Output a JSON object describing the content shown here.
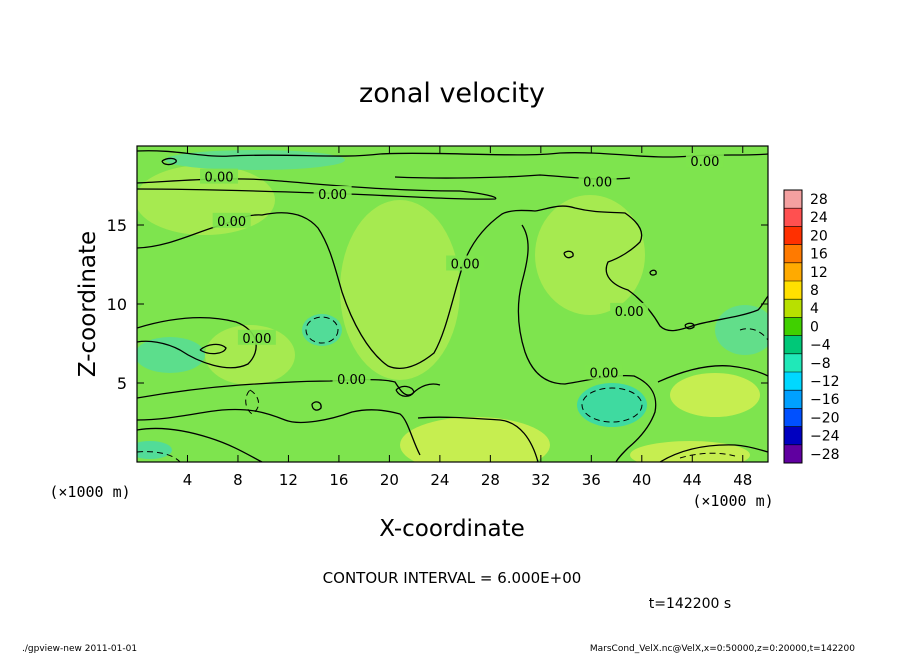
{
  "chart_data": {
    "type": "heatmap",
    "title": "zonal velocity",
    "xlabel": "X-coordinate",
    "ylabel": "Z-coordinate",
    "x_unit": "(×1000 m)",
    "z_unit": "(×1000 m)",
    "x_ticks": [
      "4",
      "8",
      "12",
      "16",
      "20",
      "24",
      "28",
      "32",
      "36",
      "40",
      "44",
      "48"
    ],
    "x_tick_values": [
      4,
      8,
      12,
      16,
      20,
      24,
      28,
      32,
      36,
      40,
      44,
      48
    ],
    "y_ticks": [
      "5",
      "10",
      "15"
    ],
    "y_tick_values": [
      5,
      10,
      15
    ],
    "xlim": [
      0,
      50
    ],
    "ylim": [
      0,
      20
    ],
    "contour_labels": [
      {
        "text": "0.00",
        "x": 6.5,
        "z": 18.0
      },
      {
        "text": "0.00",
        "x": 15.5,
        "z": 16.9
      },
      {
        "text": "0.00",
        "x": 36.5,
        "z": 17.7
      },
      {
        "text": "0.00",
        "x": 45.0,
        "z": 19.0
      },
      {
        "text": "0.00",
        "x": 7.5,
        "z": 15.2
      },
      {
        "text": "0.00",
        "x": 26.0,
        "z": 12.5
      },
      {
        "text": "0.00",
        "x": 39.0,
        "z": 9.5
      },
      {
        "text": "0.00",
        "x": 9.5,
        "z": 7.8
      },
      {
        "text": "0.00",
        "x": 17.0,
        "z": 5.2
      },
      {
        "text": "0.00",
        "x": 37.0,
        "z": 5.6
      }
    ],
    "colorbar": {
      "levels": [
        "28",
        "24",
        "20",
        "16",
        "12",
        "8",
        "4",
        "0",
        "−4",
        "−8",
        "−12",
        "−16",
        "−20",
        "−24",
        "−28"
      ],
      "colors": [
        "#f4a0a0",
        "#ff5050",
        "#ff3000",
        "#ff7a00",
        "#ffaa00",
        "#ffe000",
        "#b8e000",
        "#40d000",
        "#00c878",
        "#20e8b8",
        "#00d8ff",
        "#00a0ff",
        "#0050ff",
        "#0000c0",
        "#6000a0"
      ]
    },
    "contour_interval_text": "CONTOUR INTERVAL = 6.000E+00",
    "time_text": "t=142200 s"
  },
  "footer": {
    "left": "./gpview-new  2011-01-01",
    "right": "MarsCond_VelX.nc@VelX,x=0:50000,z=0:20000,t=142200"
  },
  "colors": {
    "background_field": "#7ee44e",
    "light_patch": "#b8ec52",
    "cyan_patch": "#3fdaa0",
    "frame": "#000000"
  }
}
